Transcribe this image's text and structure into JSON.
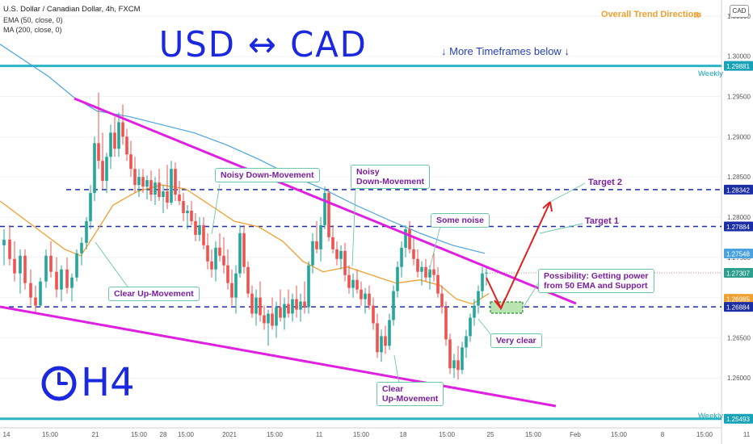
{
  "header": {
    "symbol": "U.S. Dollar / Canadian Dollar, 4h, FXCM",
    "ema": "EMA (50, close, 0)",
    "ma": "MA (200, close, 0)"
  },
  "trend_direction": "Overall Trend Direction:",
  "trend_arrow": "»",
  "currency_button": "CAD",
  "more_timeframes": "↓ More Timeframes below ↓",
  "handwriting": {
    "pair": "USD ↔ CAD",
    "timeframe": "H4",
    "clock_icon": "clock-icon"
  },
  "weekly_label_top": "Weekly",
  "weekly_label_bottom": "Weekly",
  "annotations": {
    "noisy_down_1": "Noisy Down-Movement",
    "noisy_down_2_l1": "Noisy",
    "noisy_down_2_l2": "Down-Movement",
    "some_noise": "Some noise",
    "target2": "Target 2",
    "target1": "Target 1",
    "possibility_l1": "Possibility: Getting power",
    "possibility_l2": "from 50 EMA and Support",
    "clear_up_1": "Clear Up-Movement",
    "very_clear": "Very clear",
    "clear_up_2_l1": "Clear",
    "clear_up_2_l2": "Up-Movement"
  },
  "chart_data": {
    "type": "candlestick",
    "symbol": "USDCAD",
    "timeframe": "4h",
    "ylim": [
      1.2543,
      1.307
    ],
    "y_ticks": [
      "1.30500",
      "1.30000",
      "1.29500",
      "1.29000",
      "1.28500",
      "1.28000",
      "1.27500",
      "1.27000",
      "1.26500",
      "1.26000"
    ],
    "x_ticks": [
      "14",
      "15:00",
      "21",
      "15:00",
      "28",
      "15:00",
      "2021",
      "15:00",
      "11",
      "15:00",
      "18",
      "15:00",
      "25",
      "15:00",
      "Feb",
      "15:00",
      "8",
      "15:00",
      "11"
    ],
    "price_labels": [
      {
        "value": 1.29881,
        "text": "1.29881",
        "color": "#17a2b8"
      },
      {
        "value": 1.28342,
        "text": "1.28342",
        "color": "#1b2ea6"
      },
      {
        "value": 1.27884,
        "text": "1.27884",
        "color": "#1b2ea6"
      },
      {
        "value": 1.27548,
        "text": "1.27548",
        "color": "#4aa3df"
      },
      {
        "value": 1.27307,
        "text": "1.27307",
        "color": "#2e9e8f"
      },
      {
        "value": 1.26985,
        "text": "1.26985",
        "color": "#f0a030"
      },
      {
        "value": 1.26884,
        "text": "1.26884",
        "color": "#1b2ea6"
      },
      {
        "value": 1.25493,
        "text": "1.25493",
        "color": "#17a2b8"
      }
    ],
    "weekly_levels": [
      1.29881,
      1.25493
    ],
    "dashed_levels": [
      1.28342,
      1.27884,
      1.26884
    ],
    "ema50": [
      [
        0,
        1.282
      ],
      [
        40,
        1.279
      ],
      [
        80,
        1.276
      ],
      [
        100,
        1.2752
      ],
      [
        115,
        1.2775
      ],
      [
        140,
        1.2815
      ],
      [
        170,
        1.2832
      ],
      [
        200,
        1.284
      ],
      [
        230,
        1.2835
      ],
      [
        260,
        1.2815
      ],
      [
        290,
        1.2795
      ],
      [
        320,
        1.2788
      ],
      [
        350,
        1.277
      ],
      [
        375,
        1.2745
      ],
      [
        400,
        1.2732
      ],
      [
        430,
        1.2738
      ],
      [
        460,
        1.2728
      ],
      [
        490,
        1.2718
      ],
      [
        520,
        1.2722
      ],
      [
        545,
        1.2715
      ],
      [
        565,
        1.2698
      ],
      [
        585,
        1.2692
      ],
      [
        605,
        1.2705
      ]
    ],
    "ma200": [
      [
        0,
        1.3015
      ],
      [
        30,
        1.2995
      ],
      [
        60,
        1.2975
      ],
      [
        90,
        1.295
      ],
      [
        120,
        1.2932
      ],
      [
        160,
        1.2925
      ],
      [
        200,
        1.2915
      ],
      [
        240,
        1.2905
      ],
      [
        280,
        1.289
      ],
      [
        320,
        1.2872
      ],
      [
        360,
        1.2852
      ],
      [
        400,
        1.2835
      ],
      [
        440,
        1.2815
      ],
      [
        480,
        1.2797
      ],
      [
        520,
        1.278
      ],
      [
        560,
        1.2765
      ],
      [
        600,
        1.2755
      ]
    ],
    "candles": [
      {
        "x": 5,
        "o": 1.2765,
        "h": 1.2785,
        "l": 1.274,
        "c": 1.2772
      },
      {
        "x": 12,
        "o": 1.2772,
        "h": 1.279,
        "l": 1.274,
        "c": 1.2748
      },
      {
        "x": 18,
        "o": 1.2748,
        "h": 1.277,
        "l": 1.272,
        "c": 1.273
      },
      {
        "x": 25,
        "o": 1.273,
        "h": 1.276,
        "l": 1.2705,
        "c": 1.2752
      },
      {
        "x": 31,
        "o": 1.2752,
        "h": 1.276,
        "l": 1.271,
        "c": 1.2718
      },
      {
        "x": 38,
        "o": 1.2718,
        "h": 1.2735,
        "l": 1.269,
        "c": 1.27
      },
      {
        "x": 44,
        "o": 1.27,
        "h": 1.2715,
        "l": 1.268,
        "c": 1.269
      },
      {
        "x": 50,
        "o": 1.269,
        "h": 1.2725,
        "l": 1.2688,
        "c": 1.272
      },
      {
        "x": 57,
        "o": 1.272,
        "h": 1.276,
        "l": 1.2712,
        "c": 1.2752
      },
      {
        "x": 63,
        "o": 1.2752,
        "h": 1.277,
        "l": 1.2725,
        "c": 1.2732
      },
      {
        "x": 70,
        "o": 1.2732,
        "h": 1.275,
        "l": 1.27,
        "c": 1.271
      },
      {
        "x": 76,
        "o": 1.271,
        "h": 1.274,
        "l": 1.2695,
        "c": 1.2735
      },
      {
        "x": 83,
        "o": 1.2735,
        "h": 1.275,
        "l": 1.2705,
        "c": 1.2712
      },
      {
        "x": 89,
        "o": 1.2712,
        "h": 1.273,
        "l": 1.2695,
        "c": 1.2725
      },
      {
        "x": 95,
        "o": 1.2725,
        "h": 1.276,
        "l": 1.272,
        "c": 1.2755
      },
      {
        "x": 101,
        "o": 1.2755,
        "h": 1.2775,
        "l": 1.274,
        "c": 1.2768
      },
      {
        "x": 107,
        "o": 1.2768,
        "h": 1.28,
        "l": 1.276,
        "c": 1.2795
      },
      {
        "x": 112,
        "o": 1.2795,
        "h": 1.284,
        "l": 1.2785,
        "c": 1.283
      },
      {
        "x": 117,
        "o": 1.283,
        "h": 1.29,
        "l": 1.282,
        "c": 1.2892
      },
      {
        "x": 122,
        "o": 1.2892,
        "h": 1.2955,
        "l": 1.286,
        "c": 1.287
      },
      {
        "x": 127,
        "o": 1.287,
        "h": 1.2905,
        "l": 1.2835,
        "c": 1.2845
      },
      {
        "x": 132,
        "o": 1.2845,
        "h": 1.288,
        "l": 1.283,
        "c": 1.2875
      },
      {
        "x": 137,
        "o": 1.2875,
        "h": 1.2915,
        "l": 1.286,
        "c": 1.2905
      },
      {
        "x": 142,
        "o": 1.2905,
        "h": 1.2925,
        "l": 1.2875,
        "c": 1.2885
      },
      {
        "x": 147,
        "o": 1.2885,
        "h": 1.293,
        "l": 1.2875,
        "c": 1.2918
      },
      {
        "x": 152,
        "o": 1.2918,
        "h": 1.294,
        "l": 1.289,
        "c": 1.29
      },
      {
        "x": 157,
        "o": 1.29,
        "h": 1.291,
        "l": 1.287,
        "c": 1.2878
      },
      {
        "x": 162,
        "o": 1.2878,
        "h": 1.2895,
        "l": 1.285,
        "c": 1.286
      },
      {
        "x": 167,
        "o": 1.286,
        "h": 1.2875,
        "l": 1.283,
        "c": 1.284
      },
      {
        "x": 172,
        "o": 1.284,
        "h": 1.286,
        "l": 1.2825,
        "c": 1.285
      },
      {
        "x": 177,
        "o": 1.285,
        "h": 1.286,
        "l": 1.283,
        "c": 1.2838
      },
      {
        "x": 182,
        "o": 1.2838,
        "h": 1.2852,
        "l": 1.2822,
        "c": 1.2846
      },
      {
        "x": 187,
        "o": 1.2846,
        "h": 1.2858,
        "l": 1.282,
        "c": 1.2828
      },
      {
        "x": 192,
        "o": 1.2828,
        "h": 1.285,
        "l": 1.2815,
        "c": 1.2843
      },
      {
        "x": 197,
        "o": 1.2843,
        "h": 1.286,
        "l": 1.282,
        "c": 1.2825
      },
      {
        "x": 202,
        "o": 1.2825,
        "h": 1.284,
        "l": 1.2805,
        "c": 1.2832
      },
      {
        "x": 207,
        "o": 1.2832,
        "h": 1.2865,
        "l": 1.281,
        "c": 1.2818
      },
      {
        "x": 212,
        "o": 1.2818,
        "h": 1.287,
        "l": 1.2815,
        "c": 1.286
      },
      {
        "x": 217,
        "o": 1.286,
        "h": 1.2868,
        "l": 1.282,
        "c": 1.2828
      },
      {
        "x": 222,
        "o": 1.2828,
        "h": 1.2845,
        "l": 1.2815,
        "c": 1.282
      },
      {
        "x": 227,
        "o": 1.282,
        "h": 1.283,
        "l": 1.2795,
        "c": 1.2805
      },
      {
        "x": 232,
        "o": 1.2805,
        "h": 1.2815,
        "l": 1.2785,
        "c": 1.2808
      },
      {
        "x": 237,
        "o": 1.2808,
        "h": 1.282,
        "l": 1.279,
        "c": 1.2795
      },
      {
        "x": 242,
        "o": 1.2795,
        "h": 1.2805,
        "l": 1.277,
        "c": 1.2778
      },
      {
        "x": 247,
        "o": 1.2778,
        "h": 1.28,
        "l": 1.277,
        "c": 1.279
      },
      {
        "x": 252,
        "o": 1.279,
        "h": 1.28,
        "l": 1.276,
        "c": 1.2765
      },
      {
        "x": 257,
        "o": 1.2765,
        "h": 1.278,
        "l": 1.2735,
        "c": 1.2745
      },
      {
        "x": 262,
        "o": 1.2745,
        "h": 1.276,
        "l": 1.2725,
        "c": 1.2735
      },
      {
        "x": 267,
        "o": 1.2735,
        "h": 1.277,
        "l": 1.272,
        "c": 1.2762
      },
      {
        "x": 272,
        "o": 1.2762,
        "h": 1.278,
        "l": 1.2745,
        "c": 1.2752
      },
      {
        "x": 277,
        "o": 1.2752,
        "h": 1.2775,
        "l": 1.273,
        "c": 1.274
      },
      {
        "x": 282,
        "o": 1.274,
        "h": 1.276,
        "l": 1.271,
        "c": 1.2718
      },
      {
        "x": 287,
        "o": 1.2718,
        "h": 1.2735,
        "l": 1.269,
        "c": 1.27
      },
      {
        "x": 292,
        "o": 1.27,
        "h": 1.274,
        "l": 1.268,
        "c": 1.273
      },
      {
        "x": 297,
        "o": 1.273,
        "h": 1.279,
        "l": 1.2725,
        "c": 1.278
      },
      {
        "x": 302,
        "o": 1.278,
        "h": 1.279,
        "l": 1.273,
        "c": 1.2738
      },
      {
        "x": 307,
        "o": 1.2738,
        "h": 1.2745,
        "l": 1.27,
        "c": 1.2705
      },
      {
        "x": 312,
        "o": 1.2705,
        "h": 1.2715,
        "l": 1.2675,
        "c": 1.268
      },
      {
        "x": 317,
        "o": 1.268,
        "h": 1.271,
        "l": 1.2665,
        "c": 1.27
      },
      {
        "x": 322,
        "o": 1.27,
        "h": 1.272,
        "l": 1.267,
        "c": 1.2678
      },
      {
        "x": 327,
        "o": 1.2678,
        "h": 1.269,
        "l": 1.266,
        "c": 1.2668
      },
      {
        "x": 332,
        "o": 1.2668,
        "h": 1.2685,
        "l": 1.264,
        "c": 1.268
      },
      {
        "x": 337,
        "o": 1.268,
        "h": 1.27,
        "l": 1.266,
        "c": 1.2665
      },
      {
        "x": 342,
        "o": 1.2665,
        "h": 1.2695,
        "l": 1.265,
        "c": 1.2688
      },
      {
        "x": 347,
        "o": 1.2688,
        "h": 1.271,
        "l": 1.267,
        "c": 1.2675
      },
      {
        "x": 352,
        "o": 1.2675,
        "h": 1.27,
        "l": 1.266,
        "c": 1.2692
      },
      {
        "x": 357,
        "o": 1.2692,
        "h": 1.271,
        "l": 1.2675,
        "c": 1.268
      },
      {
        "x": 362,
        "o": 1.268,
        "h": 1.2705,
        "l": 1.267,
        "c": 1.2698
      },
      {
        "x": 367,
        "o": 1.2698,
        "h": 1.2715,
        "l": 1.2675,
        "c": 1.2685
      },
      {
        "x": 372,
        "o": 1.2685,
        "h": 1.2705,
        "l": 1.267,
        "c": 1.2695
      },
      {
        "x": 377,
        "o": 1.2695,
        "h": 1.272,
        "l": 1.268,
        "c": 1.2688
      },
      {
        "x": 382,
        "o": 1.2688,
        "h": 1.2745,
        "l": 1.268,
        "c": 1.274
      },
      {
        "x": 387,
        "o": 1.274,
        "h": 1.278,
        "l": 1.273,
        "c": 1.277
      },
      {
        "x": 392,
        "o": 1.277,
        "h": 1.2795,
        "l": 1.2755,
        "c": 1.276
      },
      {
        "x": 397,
        "o": 1.276,
        "h": 1.28,
        "l": 1.2745,
        "c": 1.279
      },
      {
        "x": 402,
        "o": 1.279,
        "h": 1.2838,
        "l": 1.2785,
        "c": 1.283
      },
      {
        "x": 407,
        "o": 1.283,
        "h": 1.2835,
        "l": 1.277,
        "c": 1.2775
      },
      {
        "x": 412,
        "o": 1.2775,
        "h": 1.279,
        "l": 1.2755,
        "c": 1.276
      },
      {
        "x": 417,
        "o": 1.276,
        "h": 1.277,
        "l": 1.274,
        "c": 1.2748
      },
      {
        "x": 422,
        "o": 1.2748,
        "h": 1.2765,
        "l": 1.2735,
        "c": 1.2758
      },
      {
        "x": 427,
        "o": 1.2758,
        "h": 1.2768,
        "l": 1.272,
        "c": 1.2728
      },
      {
        "x": 432,
        "o": 1.2728,
        "h": 1.274,
        "l": 1.2705,
        "c": 1.2712
      },
      {
        "x": 437,
        "o": 1.2712,
        "h": 1.273,
        "l": 1.27,
        "c": 1.2722
      },
      {
        "x": 442,
        "o": 1.2722,
        "h": 1.2735,
        "l": 1.2705,
        "c": 1.271
      },
      {
        "x": 447,
        "o": 1.271,
        "h": 1.272,
        "l": 1.269,
        "c": 1.2698
      },
      {
        "x": 452,
        "o": 1.2698,
        "h": 1.2712,
        "l": 1.268,
        "c": 1.2705
      },
      {
        "x": 457,
        "o": 1.2705,
        "h": 1.2715,
        "l": 1.2685,
        "c": 1.269
      },
      {
        "x": 462,
        "o": 1.269,
        "h": 1.27,
        "l": 1.266,
        "c": 1.2668
      },
      {
        "x": 467,
        "o": 1.2668,
        "h": 1.268,
        "l": 1.2625,
        "c": 1.2632
      },
      {
        "x": 472,
        "o": 1.2632,
        "h": 1.266,
        "l": 1.262,
        "c": 1.2652
      },
      {
        "x": 477,
        "o": 1.2652,
        "h": 1.2665,
        "l": 1.263,
        "c": 1.264
      },
      {
        "x": 482,
        "o": 1.264,
        "h": 1.268,
        "l": 1.2635,
        "c": 1.2672
      },
      {
        "x": 487,
        "o": 1.2672,
        "h": 1.2715,
        "l": 1.2665,
        "c": 1.2708
      },
      {
        "x": 492,
        "o": 1.2708,
        "h": 1.2745,
        "l": 1.27,
        "c": 1.2738
      },
      {
        "x": 497,
        "o": 1.2738,
        "h": 1.277,
        "l": 1.2725,
        "c": 1.2762
      },
      {
        "x": 502,
        "o": 1.2762,
        "h": 1.279,
        "l": 1.275,
        "c": 1.2785
      },
      {
        "x": 507,
        "o": 1.2785,
        "h": 1.2795,
        "l": 1.2755,
        "c": 1.276
      },
      {
        "x": 512,
        "o": 1.276,
        "h": 1.2775,
        "l": 1.274,
        "c": 1.2748
      },
      {
        "x": 517,
        "o": 1.2748,
        "h": 1.276,
        "l": 1.2725,
        "c": 1.2732
      },
      {
        "x": 522,
        "o": 1.2732,
        "h": 1.2745,
        "l": 1.2715,
        "c": 1.2738
      },
      {
        "x": 527,
        "o": 1.2738,
        "h": 1.2748,
        "l": 1.272,
        "c": 1.2725
      },
      {
        "x": 532,
        "o": 1.2725,
        "h": 1.274,
        "l": 1.271,
        "c": 1.2735
      },
      {
        "x": 537,
        "o": 1.2735,
        "h": 1.2755,
        "l": 1.272,
        "c": 1.2728
      },
      {
        "x": 542,
        "o": 1.2728,
        "h": 1.2738,
        "l": 1.27,
        "c": 1.2705
      },
      {
        "x": 547,
        "o": 1.2705,
        "h": 1.2715,
        "l": 1.268,
        "c": 1.2688
      },
      {
        "x": 552,
        "o": 1.2688,
        "h": 1.2695,
        "l": 1.264,
        "c": 1.2648
      },
      {
        "x": 557,
        "o": 1.2648,
        "h": 1.2655,
        "l": 1.2605,
        "c": 1.2612
      },
      {
        "x": 562,
        "o": 1.2612,
        "h": 1.263,
        "l": 1.26,
        "c": 1.2622
      },
      {
        "x": 567,
        "o": 1.2622,
        "h": 1.264,
        "l": 1.2598,
        "c": 1.261
      },
      {
        "x": 572,
        "o": 1.261,
        "h": 1.2645,
        "l": 1.2605,
        "c": 1.2638
      },
      {
        "x": 577,
        "o": 1.2638,
        "h": 1.266,
        "l": 1.2625,
        "c": 1.2652
      },
      {
        "x": 582,
        "o": 1.2652,
        "h": 1.268,
        "l": 1.2645,
        "c": 1.2675
      },
      {
        "x": 587,
        "o": 1.2675,
        "h": 1.2698,
        "l": 1.2665,
        "c": 1.269
      },
      {
        "x": 592,
        "o": 1.269,
        "h": 1.2715,
        "l": 1.268,
        "c": 1.2708
      },
      {
        "x": 597,
        "o": 1.2708,
        "h": 1.2738,
        "l": 1.27,
        "c": 1.273
      },
      {
        "x": 602,
        "o": 1.273,
        "h": 1.274,
        "l": 1.2715,
        "c": 1.2731
      }
    ]
  }
}
